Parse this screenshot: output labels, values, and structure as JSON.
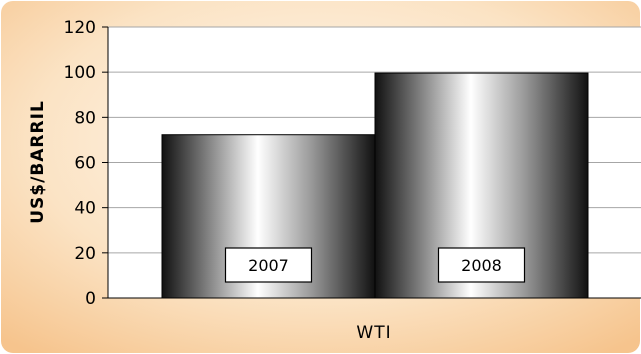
{
  "chart_data": {
    "type": "bar",
    "categories": [
      "WTI"
    ],
    "series": [
      {
        "name": "2007",
        "values": [
          72.3
        ]
      },
      {
        "name": "2008",
        "values": [
          99.6
        ]
      }
    ],
    "xlabel": "WTI",
    "ylabel": "US$/BARRIL",
    "ylim": [
      0,
      120
    ],
    "yticks": [
      0,
      20,
      40,
      60,
      80,
      100,
      120
    ],
    "grid": true,
    "legend": "none"
  },
  "colors": {
    "background_light": "#fdf3e6",
    "background_dark": "#f6c48d",
    "plot_background": "#ffffff",
    "gridline": "#a6a6a6",
    "bar_edge": "#000000",
    "bar_dark": "#111111",
    "bar_light": "#ffffff"
  }
}
